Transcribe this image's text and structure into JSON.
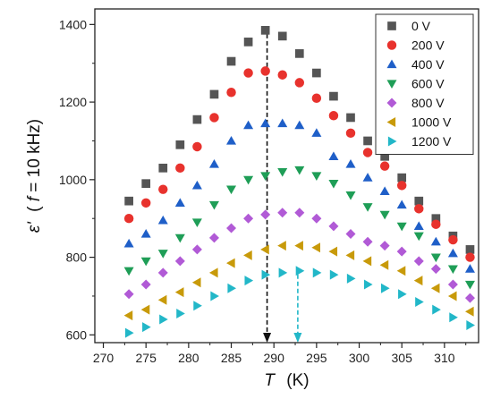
{
  "chart_data": {
    "type": "scatter",
    "xlabel": "T",
    "xlabel_unit": "(K)",
    "ylabel": "ε' (f = 10 kHz)",
    "ylabel_parts": {
      "eps": "ε'",
      "open": "(",
      "f": "f",
      "rest": " = 10 kHz)"
    },
    "xlim": [
      269,
      314
    ],
    "ylim": [
      580,
      1440
    ],
    "xticks": [
      270,
      275,
      280,
      285,
      290,
      295,
      300,
      305,
      310
    ],
    "yticks": [
      600,
      800,
      1000,
      1200,
      1400
    ],
    "legend_position": "top-right",
    "x": [
      273,
      275,
      277,
      279,
      281,
      283,
      285,
      287,
      289,
      291,
      293,
      295,
      297,
      299,
      301,
      303,
      305,
      307,
      309,
      311,
      313
    ],
    "series": [
      {
        "name": "0 V",
        "color": "#555555",
        "marker": "square",
        "values": [
          945,
          990,
          1030,
          1090,
          1155,
          1220,
          1305,
          1355,
          1385,
          1370,
          1325,
          1275,
          1215,
          1160,
          1100,
          1060,
          1005,
          945,
          900,
          855,
          820
        ]
      },
      {
        "name": "200 V",
        "color": "#e8322d",
        "marker": "circle",
        "values": [
          900,
          940,
          975,
          1030,
          1085,
          1160,
          1225,
          1275,
          1280,
          1270,
          1250,
          1210,
          1165,
          1120,
          1070,
          1035,
          985,
          925,
          885,
          845,
          800
        ]
      },
      {
        "name": "400 V",
        "color": "#1f5fc8",
        "marker": "triangle-up",
        "values": [
          835,
          860,
          895,
          940,
          985,
          1040,
          1100,
          1140,
          1145,
          1145,
          1140,
          1120,
          1060,
          1040,
          1005,
          970,
          935,
          880,
          840,
          810,
          770
        ]
      },
      {
        "name": "600 V",
        "color": "#1f9e57",
        "marker": "triangle-down",
        "values": [
          765,
          790,
          810,
          850,
          890,
          935,
          975,
          1000,
          1010,
          1020,
          1025,
          1010,
          990,
          960,
          930,
          910,
          880,
          855,
          800,
          770,
          730
        ]
      },
      {
        "name": "800 V",
        "color": "#b15ad6",
        "marker": "diamond",
        "values": [
          705,
          730,
          760,
          790,
          820,
          850,
          875,
          900,
          910,
          915,
          915,
          900,
          880,
          860,
          840,
          830,
          815,
          790,
          770,
          730,
          695
        ]
      },
      {
        "name": "1000 V",
        "color": "#c89a0a",
        "marker": "triangle-left",
        "values": [
          650,
          665,
          690,
          710,
          735,
          760,
          785,
          805,
          820,
          830,
          830,
          825,
          815,
          805,
          790,
          780,
          765,
          740,
          720,
          700,
          660
        ]
      },
      {
        "name": "1200 V",
        "color": "#22b7c8",
        "marker": "triangle-right",
        "values": [
          605,
          620,
          640,
          655,
          675,
          700,
          720,
          740,
          755,
          760,
          765,
          760,
          755,
          745,
          730,
          720,
          705,
          685,
          665,
          645,
          625
        ]
      }
    ],
    "annotations": [
      {
        "type": "dashed-arrow",
        "x": 289.2,
        "from_y": 1385,
        "to_y": 580,
        "color": "#111111"
      },
      {
        "type": "dashed-arrow",
        "x": 292.8,
        "from_y": 765,
        "to_y": 580,
        "color": "#22b7c8"
      }
    ]
  }
}
